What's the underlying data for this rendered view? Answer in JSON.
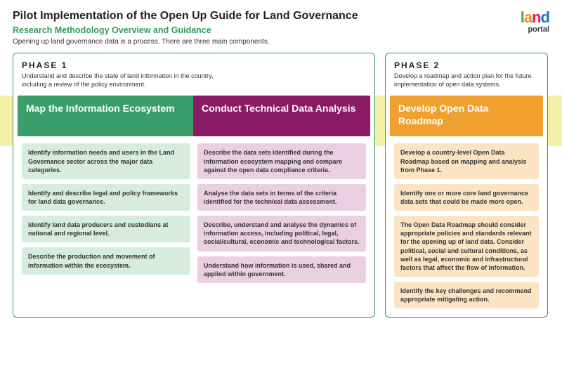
{
  "header": {
    "title": "Pilot Implementation of the Open Up Guide for Land Governance",
    "subtitle": "Research Methodology Overview and Guidance",
    "subtitle_color": "#2e9d58",
    "description": "Opening up land governance data is a process. There are three main components."
  },
  "logo": {
    "word": "land",
    "sub": "portal",
    "letter_colors": [
      "#3cb44b",
      "#f28c28",
      "#e6194B",
      "#1077d1"
    ]
  },
  "arrow_band": {
    "bg_color": "#f5f0a8"
  },
  "phases": [
    {
      "key": "phase1",
      "label": "PHASE 1",
      "description": "Understand and describe the state of land information in the country, including a review of the policy environment.",
      "border_color": "#2e9d58",
      "columns": [
        {
          "key": "map",
          "title": "Map the Information Ecosystem",
          "header_bg": "#3a9e6b",
          "item_bg": "#d6ecdf",
          "items": [
            "Identify information needs and users in the Land Governance sector across the major data categories.",
            "Identify and describe legal and policy frameworks for land data governance.",
            "Identify land data producers and custodians at national and regional level.",
            "Describe the production and movement of information within the ecosystem."
          ]
        },
        {
          "key": "analysis",
          "title": "Conduct Technical Data Analysis",
          "header_bg": "#8a1a63",
          "item_bg": "#eacfe1",
          "items": [
            "Describe the data sets identified during the information ecosystem mapping and compare against the open data compliance criteria.",
            "Analyse the data sets in terms of the criteria identified for the technical data assessment.",
            "Describe, understand and analyse the dynamics of information access, including political, legal, social/cultural, economic and technological factors.",
            "Understand how information is used, shared and applied within government."
          ]
        }
      ]
    },
    {
      "key": "phase2",
      "label": "PHASE 2",
      "description": "Develop a roadmap and action plan for the future implementation of open data systems.",
      "border_color": "#2e9d58",
      "columns": [
        {
          "key": "roadmap",
          "title": "Develop Open Data Roadmap",
          "header_bg": "#efa02e",
          "item_bg": "#fbe4c4",
          "items": [
            "Develop a country-level Open Data Roadmap based on mapping and analysis from Phase 1.",
            "Identify one or more core land governance data sets that could be made more open.",
            "The Open Data Roadmap should consider appropriate policies and standards relevant for the opening up of land data. Consider political, social and cultural conditions, as well as legal, economic and infrastructural factors that affect the flow of information.",
            "Identify the key challenges and recommend appropriate mitigating action."
          ]
        }
      ]
    }
  ]
}
